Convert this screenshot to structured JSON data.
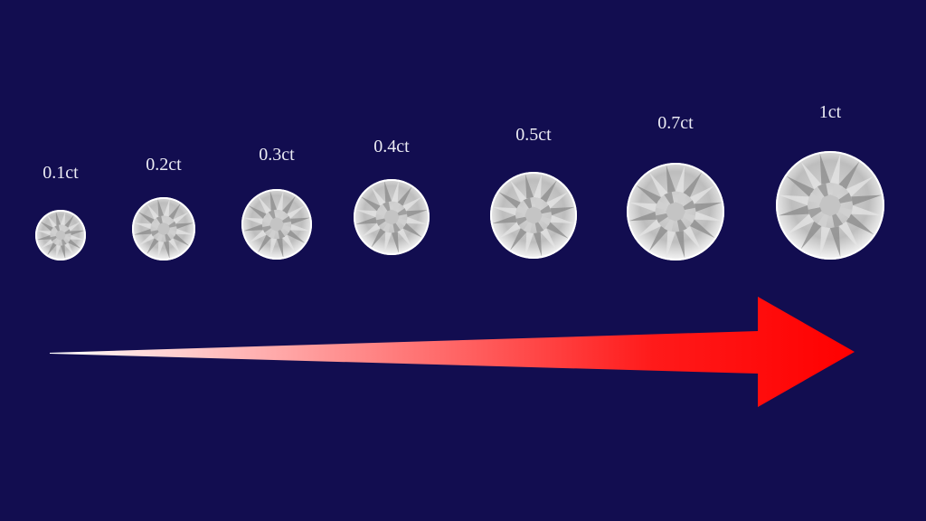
{
  "background_color": "#120d50",
  "arrow": {
    "start_color": "#ffffff",
    "end_color": "#ff0000"
  },
  "diamonds": [
    {
      "label": "0.1ct",
      "carat": 0.1
    },
    {
      "label": "0.2ct",
      "carat": 0.2
    },
    {
      "label": "0.3ct",
      "carat": 0.3
    },
    {
      "label": "0.4ct",
      "carat": 0.4
    },
    {
      "label": "0.5ct",
      "carat": 0.5
    },
    {
      "label": "0.7ct",
      "carat": 0.7
    },
    {
      "label": "1ct",
      "carat": 1
    }
  ]
}
